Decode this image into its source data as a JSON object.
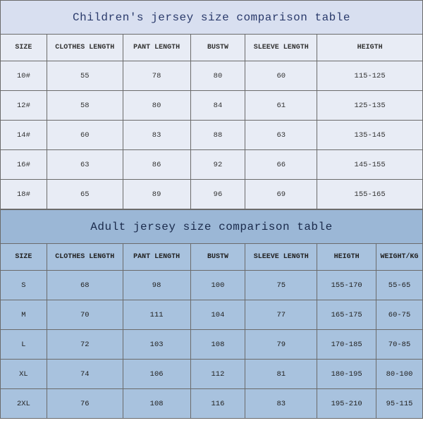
{
  "children_table": {
    "type": "table",
    "title": "Children's jersey size comparison table",
    "title_bg": "#d8dff0",
    "title_color": "#2a3a6b",
    "header_bg": "#e8ecf5",
    "body_bg": "#e8ecf5",
    "border_color": "#6b6b6b",
    "title_fontsize": 16,
    "header_fontsize": 10,
    "body_fontsize": 10.5,
    "columns": [
      "SIZE",
      "CLOTHES LENGTH",
      "PANT LENGTH",
      "BUSTW",
      "SLEEVE LENGTH",
      "HEIGTH"
    ],
    "rows": [
      [
        "10#",
        "55",
        "78",
        "80",
        "60",
        "115-125"
      ],
      [
        "12#",
        "58",
        "80",
        "84",
        "61",
        "125-135"
      ],
      [
        "14#",
        "60",
        "83",
        "88",
        "63",
        "135-145"
      ],
      [
        "16#",
        "63",
        "86",
        "92",
        "66",
        "145-155"
      ],
      [
        "18#",
        "65",
        "89",
        "96",
        "69",
        "155-165"
      ]
    ]
  },
  "adult_table": {
    "type": "table",
    "title": "Adult jersey size comparison table",
    "title_bg": "#9bb7d6",
    "title_color": "#1a2a4b",
    "header_bg": "#a8c2de",
    "body_bg": "#a8c2de",
    "border_color": "#6b6b6b",
    "title_fontsize": 16,
    "header_fontsize": 10,
    "body_fontsize": 10.5,
    "columns": [
      "SIZE",
      "CLOTHES LENGTH",
      "PANT LENGTH",
      "BUSTW",
      "SLEEVE LENGTH",
      "HEIGTH",
      "WEIGHT/KG"
    ],
    "rows": [
      [
        "S",
        "68",
        "98",
        "100",
        "75",
        "155-170",
        "55-65"
      ],
      [
        "M",
        "70",
        "111",
        "104",
        "77",
        "165-175",
        "60-75"
      ],
      [
        "L",
        "72",
        "103",
        "108",
        "79",
        "170-185",
        "70-85"
      ],
      [
        "XL",
        "74",
        "106",
        "112",
        "81",
        "180-195",
        "80-100"
      ],
      [
        "2XL",
        "76",
        "108",
        "116",
        "83",
        "195-210",
        "95-115"
      ]
    ]
  }
}
